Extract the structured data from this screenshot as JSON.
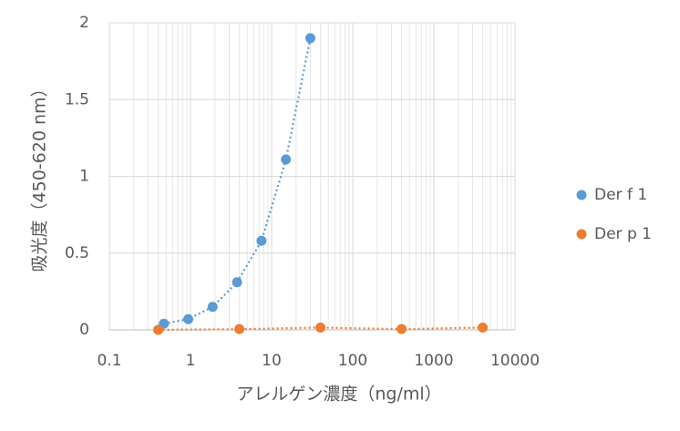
{
  "chart_data": {
    "type": "scatter",
    "x_label": "アレルゲン濃度（ng/ml）",
    "y_label": "吸光度（450-620 nm）",
    "series": [
      {
        "name": "Der f 1",
        "color": "#5b9bd5",
        "x": [
          0.469,
          0.938,
          1.875,
          3.75,
          7.5,
          15,
          30
        ],
        "values": [
          0.04,
          0.07,
          0.15,
          0.31,
          0.58,
          1.11,
          1.9
        ]
      },
      {
        "name": "Der p 1",
        "color": "#ed7d31",
        "x": [
          0.4,
          4,
          40,
          400,
          4000
        ],
        "values": [
          0,
          0.005,
          0.015,
          0.005,
          0.015
        ]
      }
    ],
    "xlim": [
      0.1,
      10000
    ],
    "xticks": [
      0.1,
      1,
      10,
      100,
      1000,
      10000
    ],
    "xscale": "log",
    "ylim": [
      0,
      2
    ],
    "yticks": [
      0,
      0.5,
      1,
      1.5,
      2
    ],
    "grid": true,
    "minor_grid": true,
    "trendline": "dotted",
    "legend": "right"
  }
}
